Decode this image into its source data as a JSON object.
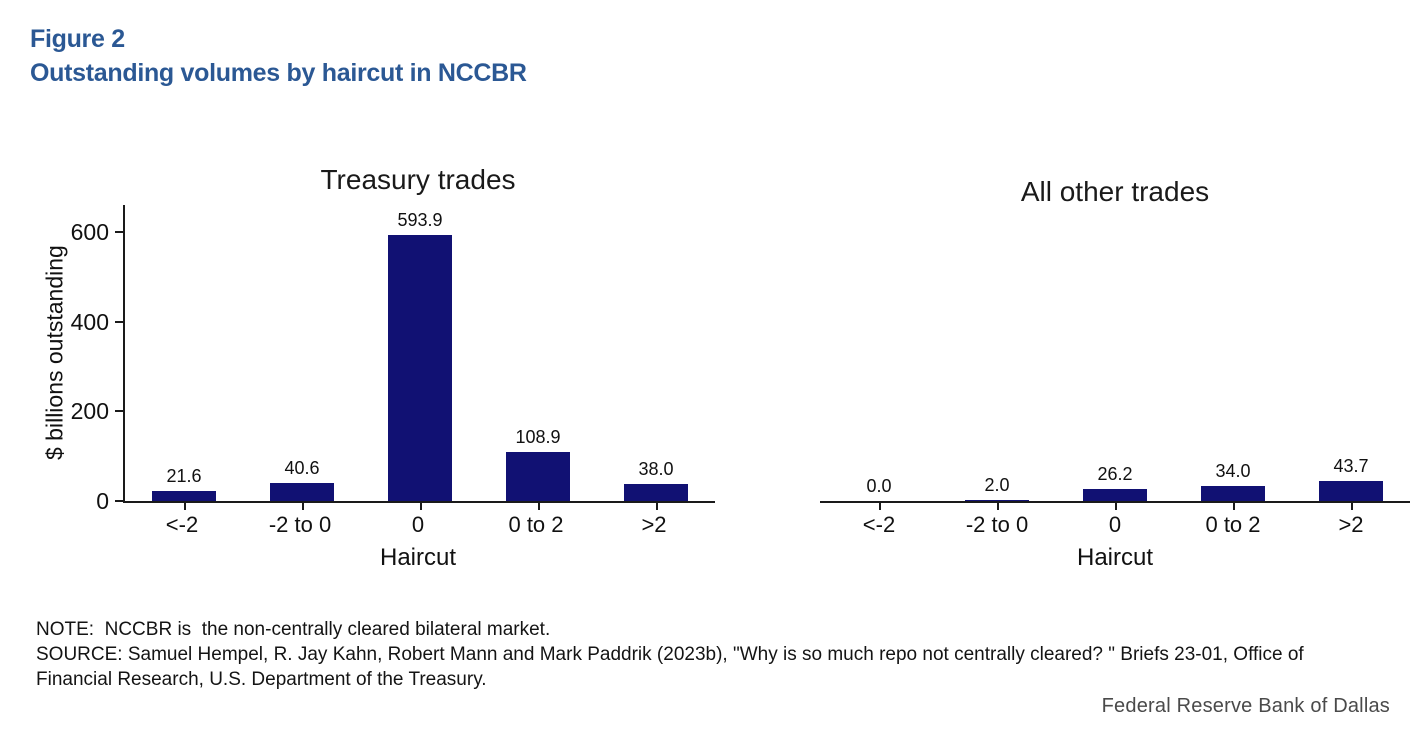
{
  "figure": {
    "label": "Figure 2",
    "title": "Outstanding volumes by haircut in NCCBR"
  },
  "chart_data": [
    {
      "type": "bar",
      "title": "Treasury trades",
      "categories": [
        "<-2",
        "-2 to 0",
        "0",
        "0 to 2",
        ">2"
      ],
      "values": [
        21.6,
        40.6,
        593.9,
        108.9,
        38.0
      ],
      "value_labels": [
        "21.6",
        "40.6",
        "593.9",
        "108.9",
        "38.0"
      ],
      "xlabel": "Haircut",
      "ylabel": "$ billions outstanding",
      "yticks": [
        0,
        200,
        400,
        600
      ],
      "ylim": [
        0,
        660
      ],
      "grid": false,
      "legend": "none"
    },
    {
      "type": "bar",
      "title": "All other trades",
      "categories": [
        "<-2",
        "-2 to 0",
        "0",
        "0 to 2",
        ">2"
      ],
      "values": [
        0.0,
        2.0,
        26.2,
        34.0,
        43.7
      ],
      "value_labels": [
        "0.0",
        "2.0",
        "26.2",
        "34.0",
        "43.7"
      ],
      "xlabel": "Haircut",
      "ylabel": "",
      "yticks": [],
      "ylim": [
        0,
        660
      ],
      "grid": false,
      "legend": "none"
    }
  ],
  "note": {
    "lines": [
      "NOTE:  NCCBR is  the non-centrally cleared bilateral market.",
      "SOURCE: Samuel Hempel, R. Jay Kahn, Robert Mann and Mark Paddrik (2023b), \"Why is so much repo not centrally cleared? \" Briefs 23-01, Office of",
      "Financial Research, U.S. Department of the Treasury."
    ]
  },
  "footer": {
    "branding": "Federal Reserve Bank of Dallas"
  },
  "colors": {
    "bar": "#111173",
    "heading": "#2B5894",
    "axis": "#1a1a1a"
  }
}
